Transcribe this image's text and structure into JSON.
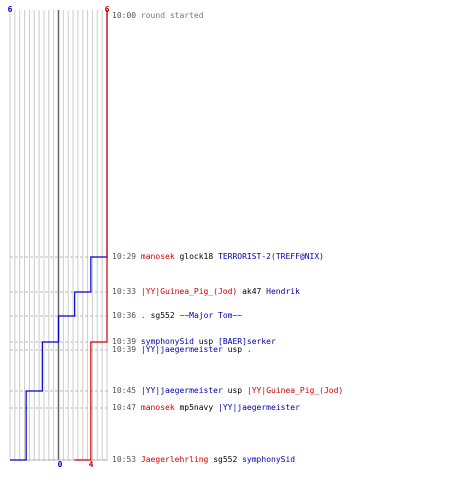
{
  "chart_data": {
    "type": "line",
    "title": "",
    "xlabel": "",
    "ylabel": "",
    "xlim": [
      0,
      6
    ],
    "series": [
      {
        "color": "#0000cc",
        "points": [
          [
            6,
            0
          ],
          [
            5,
            1
          ],
          [
            4,
            2
          ],
          [
            3,
            3
          ],
          [
            2,
            4
          ],
          [
            1,
            5
          ],
          [
            0,
            6
          ]
        ]
      },
      {
        "color": "#cc0000",
        "points": [
          [
            6,
            0
          ],
          [
            5,
            4
          ],
          [
            4,
            6
          ]
        ]
      }
    ],
    "top_labels": {
      "blue": "6",
      "red": "6"
    },
    "bottom_labels": {
      "blue": "0",
      "red": "4"
    }
  },
  "events": [
    {
      "time": "10:00",
      "kind": "round",
      "text": "round started"
    },
    {
      "time": "10:29",
      "kind": "kill",
      "killer": "manosek",
      "killer_team": "red",
      "weapon": "glock18",
      "victim": "TERRORIST-2(TREFF@NIX)",
      "victim_team": "blue"
    },
    {
      "time": "10:33",
      "kind": "kill",
      "killer": "|YY|Guinea_Pig_(Jod)",
      "killer_team": "red",
      "weapon": "ak47",
      "victim": "Hendrik",
      "victim_team": "blue"
    },
    {
      "time": "10:36",
      "kind": "kill",
      "killer": ".",
      "killer_team": "red",
      "weapon": "sg552",
      "victim": "~~Major Tom~~",
      "victim_team": "blue"
    },
    {
      "time": "10:39",
      "kind": "kill",
      "killer": "symphonySid",
      "killer_team": "blue",
      "weapon": "usp",
      "victim": "[BAER]serker",
      "victim_team": "blue"
    },
    {
      "time": "10:39",
      "kind": "kill",
      "killer": "|YY|jaegermeister",
      "killer_team": "blue",
      "weapon": "usp",
      "victim": ".",
      "victim_team": "red"
    },
    {
      "time": "10:45",
      "kind": "kill",
      "killer": "|YY|jaegermeister",
      "killer_team": "blue",
      "weapon": "usp",
      "victim": "|YY|Guinea_Pig_(Jod)",
      "victim_team": "red"
    },
    {
      "time": "10:47",
      "kind": "kill",
      "killer": "manosek",
      "killer_team": "red",
      "weapon": "mp5navy",
      "victim": "|YY|jaegermeister",
      "victim_team": "blue"
    },
    {
      "time": "10:53",
      "kind": "kill",
      "killer": "Jaegerlehrling",
      "killer_team": "red",
      "weapon": "sg552",
      "victim": "symphonySid",
      "victim_team": "blue"
    }
  ]
}
